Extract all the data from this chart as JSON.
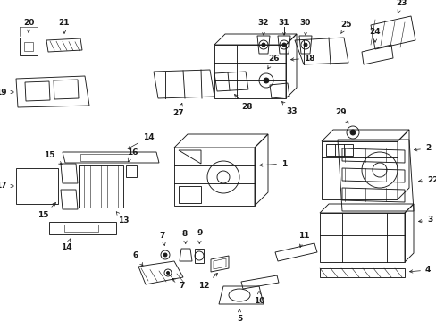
{
  "bg_color": "#ffffff",
  "line_color": "#1a1a1a",
  "figsize": [
    4.89,
    3.6
  ],
  "dpi": 100,
  "lw": 0.65
}
